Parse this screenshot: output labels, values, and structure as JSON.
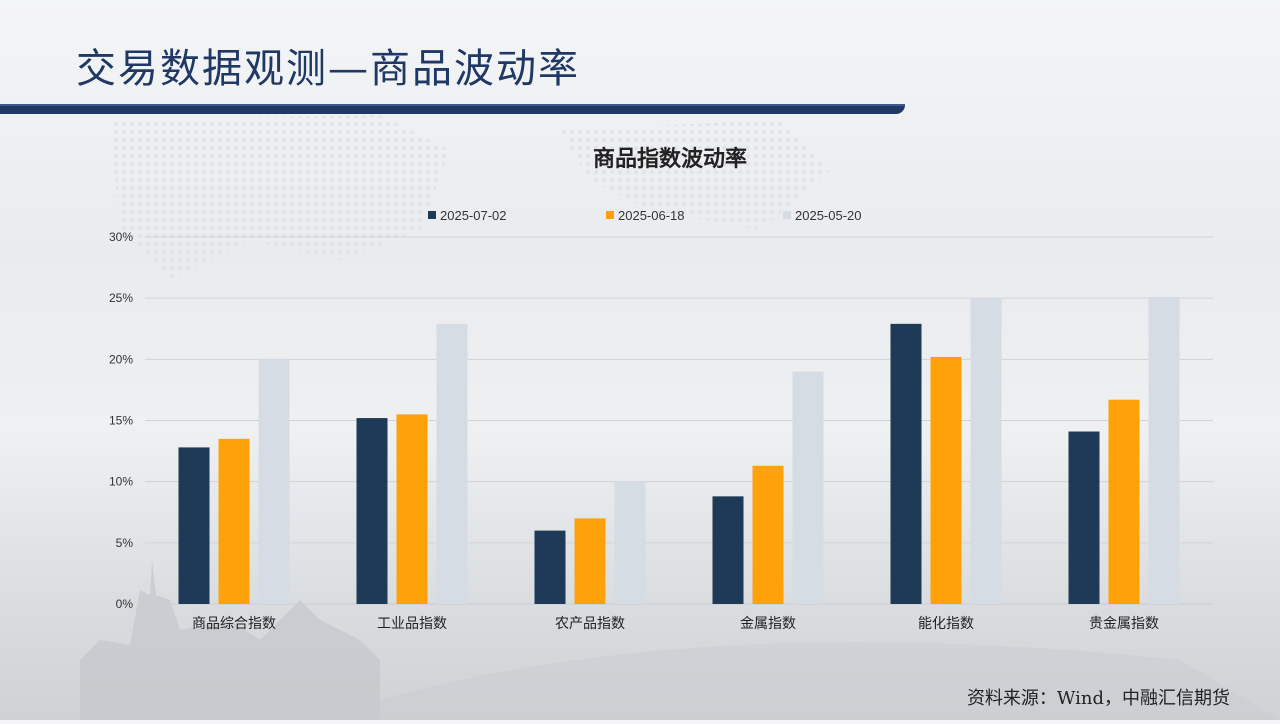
{
  "slide": {
    "title": "交易数据观测—商品波动率",
    "source": "资料来源：Wind，中融汇信期货"
  },
  "colors": {
    "title": "#1f3864",
    "series": [
      "#1f3a56",
      "#ffa20a",
      "#d6dce4"
    ],
    "grid": "#d0d3d8",
    "text": "#333333"
  },
  "chart_data": {
    "type": "bar",
    "title": "商品指数波动率",
    "categories": [
      "商品综合指数",
      "工业品指数",
      "农产品指数",
      "金属指数",
      "能化指数",
      "贵金属指数"
    ],
    "series": [
      {
        "name": "2025-07-02",
        "values": [
          12.8,
          15.2,
          6.0,
          8.8,
          22.9,
          14.1
        ]
      },
      {
        "name": "2025-06-18",
        "values": [
          13.5,
          15.5,
          7.0,
          11.3,
          20.2,
          16.7
        ]
      },
      {
        "name": "2025-05-20",
        "values": [
          20.0,
          22.9,
          10.0,
          19.0,
          25.0,
          25.1
        ]
      }
    ],
    "ylim": [
      0,
      30
    ],
    "yticks": [
      "0%",
      "5%",
      "10%",
      "15%",
      "20%",
      "25%",
      "30%"
    ],
    "legend_position": "top",
    "grid": true
  }
}
